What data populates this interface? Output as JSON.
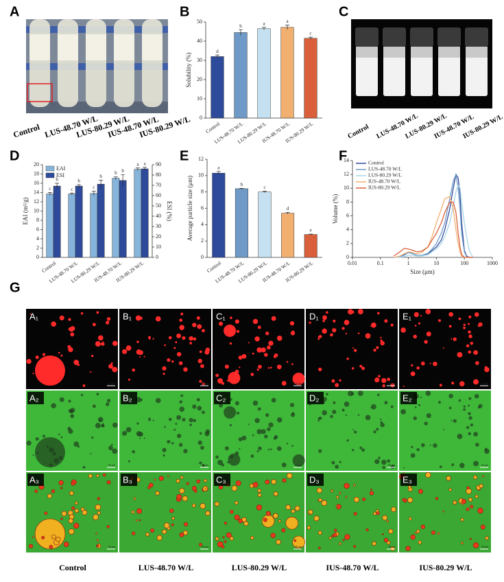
{
  "chart_data": [
    {
      "type": "bar",
      "panel": "B",
      "y_label": "Solubility (%)",
      "categories": [
        "Control",
        "LUS-48.70 W/L",
        "LUS-80.29 W/L",
        "IUS-48.70 W/L",
        "IUS-80.29 W/L"
      ],
      "values": [
        32,
        44.5,
        46.5,
        47.2,
        41.5
      ],
      "errors": [
        0.8,
        1.5,
        0.7,
        1.2,
        0.6
      ],
      "significance": [
        "d",
        "b",
        "a",
        "a",
        "c"
      ],
      "colors": [
        "#2e4a9a",
        "#6f9ac7",
        "#c5e0f0",
        "#f2b070",
        "#d9603b"
      ],
      "ylim": [
        0,
        50
      ],
      "yticks": [
        0,
        10,
        20,
        30,
        40,
        50
      ]
    },
    {
      "type": "bar",
      "panel": "D",
      "y_label": "EAI (m²/g)",
      "y2_label": "ESI (%)",
      "categories": [
        "Control",
        "LUS-48.70 W/L",
        "LUS-80.29 W/L",
        "IUS-48.70 W/L",
        "IUS-80.29 W/L"
      ],
      "series": [
        {
          "name": "EAI",
          "color": "#86b4da",
          "values": [
            13.7,
            13.7,
            13.8,
            17.1,
            19.0
          ],
          "errors": [
            0.3,
            0.2,
            0.5,
            0.3,
            0.3
          ],
          "significance": [
            "c",
            "c",
            "c",
            "b",
            "a"
          ]
        },
        {
          "name": "ESI",
          "color": "#2e4a9a",
          "axis": "y2",
          "values": [
            69.3,
            69.3,
            71.1,
            74.7,
            86
          ],
          "errors": [
            2.7,
            1.4,
            4,
            5.6,
            1.4
          ],
          "significance": [
            "b",
            "b",
            "b",
            "b",
            "a"
          ]
        }
      ],
      "legend": "top-left",
      "ylim": [
        0,
        20
      ],
      "yticks": [
        0,
        2,
        4,
        6,
        8,
        10,
        12,
        14,
        16,
        18,
        20
      ],
      "y2lim": [
        0,
        90
      ],
      "y2ticks": [
        0,
        10,
        20,
        30,
        40,
        50,
        60,
        70,
        80,
        90
      ]
    },
    {
      "type": "bar",
      "panel": "E",
      "y_label": "Average particle size (μm)",
      "categories": [
        "Control",
        "LUS-48.70 W/L",
        "LUS-80.29 W/L",
        "IUS-48.70 W/L",
        "IUS-80.29 W/L"
      ],
      "values": [
        10.3,
        8.4,
        8.0,
        5.4,
        2.8
      ],
      "errors": [
        0.2,
        0.05,
        0.1,
        0.1,
        0.05
      ],
      "significance": [
        "a",
        "b",
        "c",
        "d",
        "e"
      ],
      "colors": [
        "#2e4a9a",
        "#6f9ac7",
        "#c5e0f0",
        "#f2b070",
        "#d9603b"
      ],
      "ylim": [
        0,
        12
      ],
      "yticks": [
        0,
        2,
        4,
        6,
        8,
        10,
        12
      ]
    },
    {
      "type": "line",
      "panel": "F",
      "x_label": "Size (μm)",
      "y_label": "Volume (%)",
      "log_x": true,
      "legend": "top-left",
      "x": [
        0.3,
        0.5,
        0.7,
        1,
        1.5,
        2,
        3,
        5,
        7,
        10,
        15,
        20,
        30,
        40,
        50,
        60,
        70,
        80,
        100,
        120,
        150,
        200
      ],
      "series": [
        {
          "name": "Control",
          "color": "#2e4a9a",
          "values": [
            0,
            0.1,
            0.4,
            0.8,
            0.5,
            0.3,
            0.2,
            0.5,
            1,
            1.5,
            2.5,
            4,
            7,
            10,
            12,
            11.5,
            9,
            5,
            1,
            0.2,
            0,
            0
          ]
        },
        {
          "name": "LUS-48.70 W/L",
          "color": "#6f9ac7",
          "values": [
            0,
            0.1,
            0.3,
            0.7,
            0.5,
            0.3,
            0.3,
            0.6,
            1.2,
            2,
            3.5,
            5,
            8.5,
            11,
            12,
            10,
            7,
            3.5,
            0.8,
            0.1,
            0,
            0
          ]
        },
        {
          "name": "LUS-80.29 W/L",
          "color": "#a8d4e8",
          "values": [
            0,
            0,
            0.1,
            0.3,
            0.3,
            0.2,
            0.2,
            0.4,
            0.8,
            1.2,
            2,
            3,
            5,
            7.5,
            9.5,
            10.5,
            10,
            8,
            5,
            3,
            1,
            0
          ]
        },
        {
          "name": "IUS-48.70 W/L",
          "color": "#f2b070",
          "values": [
            0,
            0.2,
            0.5,
            0.8,
            0.7,
            0.5,
            0.7,
            1.5,
            3,
            5,
            7,
            8.5,
            8.8,
            7,
            4,
            2,
            0.8,
            0.2,
            0,
            0,
            0,
            0
          ]
        },
        {
          "name": "IUS-80.29 W/L",
          "color": "#d9603b",
          "values": [
            0.2,
            0.8,
            1.3,
            1.2,
            1,
            0.8,
            0.9,
            1.5,
            2.5,
            3.5,
            5,
            6.5,
            8,
            8,
            6.5,
            3.5,
            1.5,
            0.4,
            0,
            0,
            0,
            0
          ]
        }
      ],
      "xlim": [
        0.01,
        1000
      ],
      "xticks": [
        0.01,
        0.1,
        1,
        10,
        100,
        1000
      ],
      "ylim": [
        0,
        14
      ],
      "yticks": [
        0,
        2,
        4,
        6,
        8,
        10,
        12,
        14
      ]
    }
  ],
  "photos": {
    "panel_a": "A",
    "panel_c": "C",
    "panel_g": "G",
    "micrograph_labels": [
      [
        "A₁",
        "B₁",
        "C₁",
        "D₁",
        "E₁"
      ],
      [
        "A₂",
        "B₂",
        "C₂",
        "D₂",
        "E₂"
      ],
      [
        "A₃",
        "B₃",
        "C₃",
        "D₃",
        "E₃"
      ]
    ],
    "scale_bar": "20 μm"
  }
}
